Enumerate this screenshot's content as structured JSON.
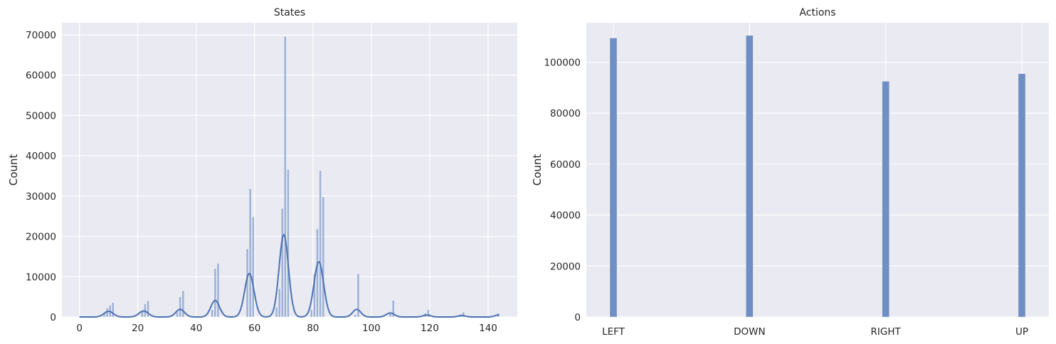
{
  "chart_data": [
    {
      "type": "histogram",
      "title": "States",
      "xlabel": "",
      "ylabel": "Count",
      "xlim": [
        -6,
        150
      ],
      "ylim": [
        0,
        73000
      ],
      "xticks": [
        0,
        20,
        40,
        60,
        80,
        100,
        120,
        140
      ],
      "yticks": [
        0,
        10000,
        20000,
        30000,
        40000,
        50000,
        60000,
        70000
      ],
      "xtick_labels": [
        "0",
        "20",
        "40",
        "60",
        "80",
        "100",
        "120",
        "140"
      ],
      "ytick_labels": [
        "0",
        "10000",
        "20000",
        "30000",
        "40000",
        "50000",
        "60000",
        "70000"
      ],
      "grid": true,
      "bars": [
        {
          "x": 8,
          "value": 900
        },
        {
          "x": 9,
          "value": 2200
        },
        {
          "x": 10,
          "value": 2900
        },
        {
          "x": 11,
          "value": 3600
        },
        {
          "x": 21,
          "value": 1300
        },
        {
          "x": 22,
          "value": 3200
        },
        {
          "x": 23,
          "value": 4000
        },
        {
          "x": 33,
          "value": 1200
        },
        {
          "x": 34,
          "value": 5000
        },
        {
          "x": 35,
          "value": 6500
        },
        {
          "x": 45,
          "value": 1800
        },
        {
          "x": 46,
          "value": 12000
        },
        {
          "x": 47,
          "value": 13300
        },
        {
          "x": 57,
          "value": 16900
        },
        {
          "x": 58,
          "value": 31800
        },
        {
          "x": 59,
          "value": 24800
        },
        {
          "x": 67,
          "value": 2400
        },
        {
          "x": 68,
          "value": 7000
        },
        {
          "x": 69,
          "value": 26900
        },
        {
          "x": 70,
          "value": 69600
        },
        {
          "x": 71,
          "value": 36600
        },
        {
          "x": 79,
          "value": 1800
        },
        {
          "x": 80,
          "value": 10700
        },
        {
          "x": 81,
          "value": 21800
        },
        {
          "x": 82,
          "value": 36300
        },
        {
          "x": 83,
          "value": 29800
        },
        {
          "x": 94,
          "value": 600
        },
        {
          "x": 95,
          "value": 10700
        },
        {
          "x": 106,
          "value": 800
        },
        {
          "x": 107,
          "value": 4100
        },
        {
          "x": 118,
          "value": 900
        },
        {
          "x": 119,
          "value": 1800
        },
        {
          "x": 130,
          "value": 700
        },
        {
          "x": 131,
          "value": 1200
        },
        {
          "x": 143,
          "value": 900
        }
      ],
      "kde": [
        {
          "center": 10,
          "sigma": 1.6,
          "height": 1400
        },
        {
          "center": 22,
          "sigma": 1.6,
          "height": 1500
        },
        {
          "center": 34.5,
          "sigma": 1.5,
          "height": 1900
        },
        {
          "center": 46.5,
          "sigma": 1.5,
          "height": 4100
        },
        {
          "center": 58.2,
          "sigma": 1.6,
          "height": 10800
        },
        {
          "center": 70,
          "sigma": 1.6,
          "height": 20400
        },
        {
          "center": 82,
          "sigma": 1.65,
          "height": 13700
        },
        {
          "center": 95,
          "sigma": 1.4,
          "height": 1900
        },
        {
          "center": 106.5,
          "sigma": 1.4,
          "height": 1000
        },
        {
          "center": 119,
          "sigma": 1.3,
          "height": 500
        },
        {
          "center": 131,
          "sigma": 1.3,
          "height": 350
        },
        {
          "center": 143.5,
          "sigma": 1.2,
          "height": 500
        }
      ],
      "kde_range": [
        0,
        144
      ],
      "bar_color": "#8fa7d1",
      "line_color": "#4c72b0"
    },
    {
      "type": "bar",
      "title": "Actions",
      "xlabel": "",
      "ylabel": "Count",
      "categories": [
        "LEFT",
        "DOWN",
        "RIGHT",
        "UP"
      ],
      "values": [
        109500,
        110500,
        92500,
        95500
      ],
      "ylim": [
        0,
        115500
      ],
      "yticks": [
        0,
        20000,
        40000,
        60000,
        80000,
        100000
      ],
      "ytick_labels": [
        "0",
        "20000",
        "40000",
        "60000",
        "80000",
        "100000"
      ],
      "grid": true,
      "bar_color": "#6f8fc4"
    }
  ],
  "colors": {
    "plot_background": "#eaeaf2",
    "grid": "#ffffff",
    "text": "#262626"
  }
}
